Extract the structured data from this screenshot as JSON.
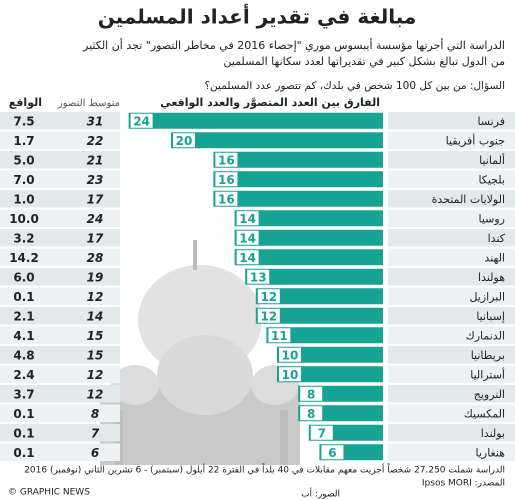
{
  "chart_data": {
    "type": "bar",
    "title": "مبالغة في تقدير أعداد المسلمين",
    "subtitle": [
      "الدراسة التي أجرتها مؤسسة أيبسوس موري \"إحصاء 2016 في مخاطر التصور\" تجد أن الكثير",
      "من الدول تبالغ بشكل كبير في تقديراتها لعدد سكانها المسلمين"
    ],
    "question": "السؤال: من بين كل 100 شخص في بلدك، كم تتصور عدد المسلمين؟",
    "categories": [
      "فرنسا",
      "جنوب أفريقيا",
      "ألمانيا",
      "بلجيكا",
      "الولايات المتحدة",
      "روسيا",
      "كندا",
      "الهند",
      "هولندا",
      "البرازيل",
      "إسبانيا",
      "الدنمارك",
      "بريطانيا",
      "أستراليا",
      "النرويج",
      "المكسيك",
      "بولندا",
      "هنغاريا"
    ],
    "series": [
      {
        "name": "الفارق بين العدد المتصوَّر والعدد الواقعي",
        "color": "#17a394",
        "values": [
          24,
          20,
          16,
          16,
          16,
          14,
          14,
          14,
          13,
          12,
          12,
          11,
          10,
          10,
          8,
          8,
          7,
          6
        ]
      },
      {
        "name": "متوسط التصور",
        "values": [
          31,
          22,
          21,
          23,
          17,
          24,
          17,
          28,
          19,
          12,
          14,
          15,
          15,
          12,
          12,
          8,
          7,
          6
        ]
      },
      {
        "name": "الواقع",
        "values": [
          7.5,
          1.7,
          5,
          7,
          1,
          10,
          3.2,
          14.2,
          6,
          0.1,
          2.1,
          4.1,
          4.8,
          2.4,
          3.7,
          0.1,
          0.1,
          0.1
        ],
        "value_labels": [
          "7.5",
          "1.7",
          "5.0",
          "7.0",
          "1.0",
          "10.0",
          "3.2",
          "14.2",
          "6.0",
          "0.1",
          "2.1",
          "4.1",
          "4.8",
          "2.4",
          "3.7",
          "0.1",
          "0.1",
          "0.1"
        ]
      }
    ],
    "note": "الدراسة شملت 27.250 شخصاً أجريت معهم مقابلات في 40 بلداً في الفترة 22 أيلول (سبتمبر) - 6 تشرين الثاني (نوفمبر) 2016",
    "source": "المصدر: Ipsos MORI",
    "photo": "الصور: أب",
    "credit": "© GRAPHIC NEWS"
  }
}
